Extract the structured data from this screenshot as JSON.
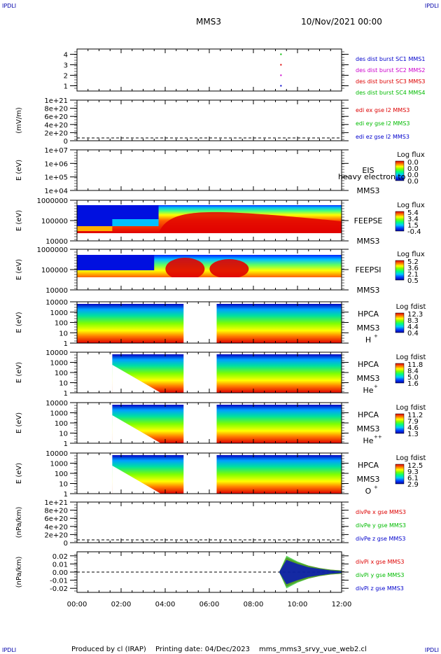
{
  "header": {
    "corner_tl": "IPDLI",
    "corner_tr": "IPDLI",
    "corner_bl": "IPDLI",
    "corner_br": "IPDLI",
    "mission": "MMS3",
    "datetime": "10/Nov/2021 00:00"
  },
  "footer": {
    "produced_by": "Produced by cl (IRAP)",
    "printing_date": "Printing date: 04/Dec/2023",
    "script": "mms_mms3_srvy_vue_web2.cl"
  },
  "colors": {
    "blue": "#0000cc",
    "magenta": "#cc00cc",
    "red": "#dd0000",
    "green": "#00bb00",
    "colormap": [
      "#0000a0",
      "#0040ff",
      "#00c8ff",
      "#00ff80",
      "#80ff00",
      "#ffff00",
      "#ff8000",
      "#e00000"
    ]
  },
  "chart_data": {
    "type": "stacked-panels",
    "x_axis": {
      "min": "00:00",
      "max": "12:00",
      "tick_labels": [
        "00:00",
        "02:00",
        "04:00",
        "06:00",
        "08:00",
        "10:00",
        "12:00"
      ]
    },
    "panels": [
      {
        "id": "burst",
        "type": "scatter",
        "yticks": [
          "1",
          "2",
          "3",
          "4"
        ],
        "ylim": [
          0.5,
          4.5
        ],
        "series": [
          {
            "name": "des dist burst SC1 MMS1",
            "color": "#0000cc",
            "points": [
              [
                9.25,
                1
              ]
            ]
          },
          {
            "name": "des dist burst SC2 MMS2",
            "color": "#cc00cc",
            "points": [
              [
                9.25,
                2
              ]
            ]
          },
          {
            "name": "des dist burst SC3 MMS3",
            "color": "#dd0000",
            "points": [
              [
                9.25,
                3
              ]
            ]
          },
          {
            "name": "des dist burst SC4 MMS4",
            "color": "#00bb00",
            "points": [
              [
                9.25,
                4
              ]
            ]
          }
        ]
      },
      {
        "id": "edi",
        "type": "line",
        "ylabel": "(mV/m)",
        "yticks": [
          "0",
          "2e+20",
          "4e+20",
          "6e+20",
          "8e+20",
          "1e+21"
        ],
        "legend": [
          {
            "name": "edi ex gse l2 MMS3",
            "color": "#dd0000"
          },
          {
            "name": "edi ey gse l2 MMS3",
            "color": "#00bb00"
          },
          {
            "name": "edi ez gse l2 MMS3",
            "color": "#0000cc"
          }
        ]
      },
      {
        "id": "eis",
        "type": "heatmap",
        "ylabel": "E (eV)",
        "yticks": [
          "1e+04",
          "1e+05",
          "1e+06",
          "1e+07"
        ],
        "labels": [
          "EIS",
          "MMS3"
        ],
        "overlay": "heavy electron to",
        "colorbar": {
          "title": "Log flux",
          "ticks": [
            "0.0",
            "0.0",
            "0.0",
            "0.0"
          ]
        }
      },
      {
        "id": "feepse",
        "type": "heatmap",
        "ylabel": "E (eV)",
        "yticks": [
          "10000",
          "100000",
          "1000000"
        ],
        "labels": [
          "FEEPSE",
          "MMS3"
        ],
        "colorbar": {
          "title": "Log flux",
          "ticks": [
            "5.4",
            "3.4",
            "1.5",
            "-0.4"
          ]
        }
      },
      {
        "id": "feepsi",
        "type": "heatmap",
        "ylabel": "E (eV)",
        "yticks": [
          "10000",
          "100000",
          "1000000"
        ],
        "labels": [
          "FEEPSI",
          "MMS3"
        ],
        "colorbar": {
          "title": "Log flux",
          "ticks": [
            "5.2",
            "3.6",
            "2.1",
            "0.5"
          ]
        }
      },
      {
        "id": "hpca_h",
        "type": "heatmap",
        "ylabel": "E (eV)",
        "yticks": [
          "1",
          "10",
          "100",
          "1000",
          "10000"
        ],
        "labels": [
          "HPCA",
          "MMS3"
        ],
        "species": "H",
        "species_sup": "+",
        "gap": [
          "04:50",
          "06:20"
        ],
        "colorbar": {
          "title": "Log fdist",
          "ticks": [
            "12.3",
            "8.3",
            "4.4",
            "0.4"
          ]
        }
      },
      {
        "id": "hpca_he",
        "type": "heatmap",
        "ylabel": "E (eV)",
        "yticks": [
          "1",
          "10",
          "100",
          "1000",
          "10000"
        ],
        "labels": [
          "HPCA",
          "MMS3"
        ],
        "species": "He",
        "species_sup": "+",
        "gap": [
          "04:50",
          "06:20"
        ],
        "colorbar": {
          "title": "Log fdist",
          "ticks": [
            "11.8",
            "8.4",
            "5.0",
            "1.6"
          ]
        }
      },
      {
        "id": "hpca_he2",
        "type": "heatmap",
        "ylabel": "E (eV)",
        "yticks": [
          "1",
          "10",
          "100",
          "1000",
          "10000"
        ],
        "labels": [
          "HPCA",
          "MMS3"
        ],
        "species": "He",
        "species_sup": "++",
        "gap": [
          "04:50",
          "06:20"
        ],
        "colorbar": {
          "title": "Log fdist",
          "ticks": [
            "11.2",
            "7.9",
            "4.6",
            "1.3"
          ]
        }
      },
      {
        "id": "hpca_o",
        "type": "heatmap",
        "ylabel": "E (eV)",
        "yticks": [
          "1",
          "10",
          "100",
          "1000",
          "10000"
        ],
        "labels": [
          "HPCA",
          "MMS3"
        ],
        "species": "O",
        "species_sup": "+",
        "gap": [
          "04:50",
          "06:20"
        ],
        "colorbar": {
          "title": "Log fdist",
          "ticks": [
            "12.5",
            "9.3",
            "6.1",
            "2.9"
          ]
        }
      },
      {
        "id": "divpe",
        "type": "line",
        "ylabel": "(nPa/km)",
        "yticks": [
          "0",
          "2e+20",
          "4e+20",
          "6e+20",
          "8e+20",
          "1e+21"
        ],
        "legend": [
          {
            "name": "divPe x gse MMS3",
            "color": "#dd0000"
          },
          {
            "name": "divPe y gse MMS3",
            "color": "#00bb00"
          },
          {
            "name": "divPe z gse MMS3",
            "color": "#0000cc"
          }
        ]
      },
      {
        "id": "divpi",
        "type": "line",
        "ylabel": "(nPa/km)",
        "yticks": [
          "-0.02",
          "-0.01",
          "0.00",
          "0.01",
          "0.02"
        ],
        "ylim": [
          -0.025,
          0.025
        ],
        "legend": [
          {
            "name": "divPi x gse MMS3",
            "color": "#dd0000"
          },
          {
            "name": "divPi y gse MMS3",
            "color": "#00bb00"
          },
          {
            "name": "divPi z gse MMS3",
            "color": "#0000cc"
          }
        ],
        "series": [
          {
            "name": "divPi x gse MMS3",
            "color": "#dd0000",
            "x": [
              "09:10",
              "09:30",
              "10:00",
              "10:30",
              "11:00",
              "11:30",
              "12:00"
            ],
            "envelope": [
              0.0,
              0.018,
              0.012,
              0.008,
              0.005,
              0.003,
              0.002
            ]
          },
          {
            "name": "divPi y gse MMS3",
            "color": "#00bb00",
            "x": [
              "09:10",
              "09:30",
              "10:00",
              "10:30",
              "11:00",
              "11:30",
              "12:00"
            ],
            "envelope": [
              0.0,
              0.02,
              0.013,
              0.008,
              0.005,
              0.003,
              0.002
            ]
          },
          {
            "name": "divPi z gse MMS3",
            "color": "#0000cc",
            "x": [
              "09:10",
              "09:30",
              "10:00",
              "10:30",
              "11:00",
              "11:30",
              "12:00"
            ],
            "envelope": [
              0.0,
              0.015,
              0.01,
              0.006,
              0.004,
              0.002,
              0.001
            ]
          }
        ]
      }
    ]
  }
}
